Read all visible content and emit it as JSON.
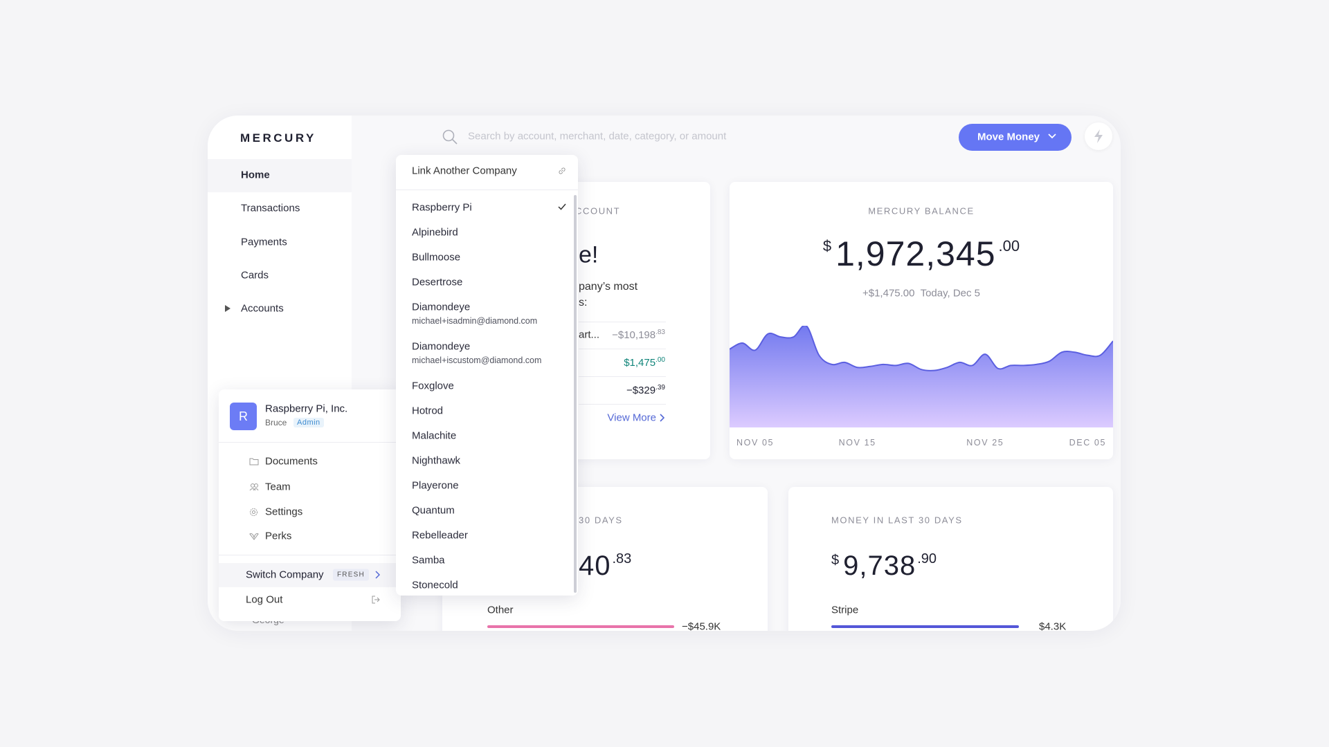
{
  "brand": "MERCURY",
  "nav": [
    "Home",
    "Transactions",
    "Payments",
    "Cards",
    "Accounts"
  ],
  "search_placeholder": "Search by account, merchant, date, category, or amount",
  "move_money": "Move Money",
  "account_card": {
    "title_fragment": "CCOUNT",
    "heading_fragment": "e!",
    "text_fragments": [
      "pany’s most",
      "s:"
    ],
    "rows": [
      {
        "label": "art...",
        "amount": "−$10,198",
        "cents": ".83"
      },
      {
        "amount": "$1,475",
        "cents": ".00"
      },
      {
        "amount": "−$329",
        "cents": ".39"
      }
    ],
    "link": "View More"
  },
  "balance_card": {
    "title": "MERCURY BALANCE",
    "currency": "$",
    "amount": "1,972,345",
    "cents": ".00",
    "change": "+$1,475.00",
    "date": "Today, Dec 5"
  },
  "chart_data": {
    "type": "area",
    "color": "#5b5fe0",
    "x": [
      0,
      1,
      2,
      3,
      4,
      5,
      6,
      7,
      8,
      9,
      10,
      11,
      12,
      13,
      14,
      15,
      16,
      17,
      18,
      19,
      20,
      21,
      22,
      23,
      24,
      25,
      26,
      27,
      28,
      29,
      30
    ],
    "values": [
      77,
      83,
      76,
      92,
      89,
      89,
      100,
      71,
      62,
      64,
      59,
      60,
      62,
      61,
      63,
      57,
      56,
      59,
      64,
      61,
      72,
      58,
      61,
      61,
      62,
      65,
      74,
      74,
      71,
      71,
      85
    ],
    "xlim": [
      0,
      30
    ],
    "ylim": [
      0,
      100
    ],
    "xticks": [
      {
        "value": 0,
        "label": "NOV 05"
      },
      {
        "value": 10,
        "label": "NOV 15"
      },
      {
        "value": 20,
        "label": "NOV 25"
      },
      {
        "value": 30,
        "label": "DEC 05"
      }
    ]
  },
  "money_out_card": {
    "title_fragment": "30 DAYS",
    "amount_fragment": "40",
    "cents": ".83",
    "category": "Other",
    "category_amount": "−$45.9K"
  },
  "money_in_card": {
    "title": "MONEY IN LAST 30 DAYS",
    "currency": "$",
    "amount": "9,738",
    "cents": ".90",
    "category": "Stripe",
    "category_amount": "$4.3K"
  },
  "company_menu": {
    "avatar": "R",
    "company": "Raspberry Pi, Inc.",
    "user": "Bruce",
    "role": "Admin",
    "items": [
      "Documents",
      "Team",
      "Settings",
      "Perks"
    ],
    "switch": "Switch Company",
    "badge": "FRESH",
    "logout": "Log Out",
    "hidden_user": "George"
  },
  "company_dropdown": {
    "link": "Link Another Company",
    "companies": [
      {
        "name": "Raspberry Pi"
      },
      {
        "name": "Alpinebird"
      },
      {
        "name": "Bullmoose"
      },
      {
        "name": "Desertrose"
      },
      {
        "name": "Diamondeye",
        "email": "michael+isadmin@diamond.com"
      },
      {
        "name": "Diamondeye",
        "email": "michael+iscustom@diamond.com"
      },
      {
        "name": "Foxglove"
      },
      {
        "name": "Hotrod"
      },
      {
        "name": "Malachite"
      },
      {
        "name": "Nighthawk"
      },
      {
        "name": "Playerone"
      },
      {
        "name": "Quantum"
      },
      {
        "name": "Rebelleader"
      },
      {
        "name": "Samba"
      },
      {
        "name": "Stonecold"
      }
    ]
  }
}
